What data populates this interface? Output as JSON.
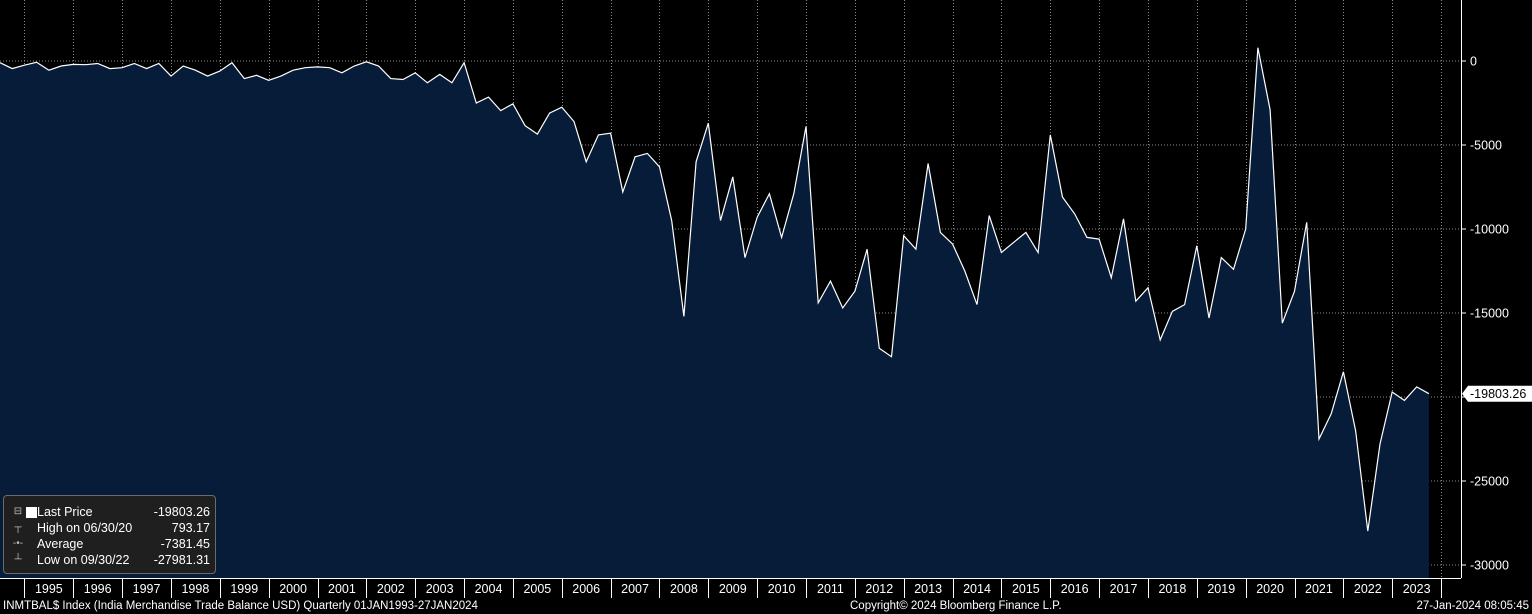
{
  "chart_data": {
    "type": "area",
    "series": [
      {
        "name": "Last Price",
        "color": "#ffffff",
        "fill": "#061c38"
      }
    ],
    "ylim": [
      -31000,
      3500
    ],
    "yticks": [
      0,
      -5000,
      -10000,
      -15000,
      -20000,
      -25000,
      -30000
    ],
    "ytick_labels": [
      "0",
      "-5000",
      "-10000",
      "-15000",
      "-20000",
      "-25000",
      "-30000"
    ],
    "xrange": [
      1994.0,
      2023.7
    ],
    "xtick_labels": [
      "1995",
      "1996",
      "1997",
      "1998",
      "1999",
      "2000",
      "2001",
      "2002",
      "2003",
      "2004",
      "2005",
      "2006",
      "2007",
      "2008",
      "2009",
      "2010",
      "2011",
      "2012",
      "2013",
      "2014",
      "2015",
      "2016",
      "2017",
      "2018",
      "2019",
      "2020",
      "2021",
      "2022",
      "2023"
    ],
    "grid": true,
    "points": [
      [
        1994.0,
        -100
      ],
      [
        1994.25,
        -450
      ],
      [
        1994.5,
        -250
      ],
      [
        1994.75,
        -80
      ],
      [
        1995.0,
        -550
      ],
      [
        1995.25,
        -300
      ],
      [
        1995.5,
        -200
      ],
      [
        1995.75,
        -220
      ],
      [
        1996.0,
        -150
      ],
      [
        1996.25,
        -450
      ],
      [
        1996.5,
        -400
      ],
      [
        1996.75,
        -150
      ],
      [
        1997.0,
        -450
      ],
      [
        1997.25,
        -150
      ],
      [
        1997.5,
        -900
      ],
      [
        1997.75,
        -300
      ],
      [
        1998.0,
        -550
      ],
      [
        1998.25,
        -900
      ],
      [
        1998.5,
        -600
      ],
      [
        1998.75,
        -100
      ],
      [
        1999.0,
        -1050
      ],
      [
        1999.25,
        -850
      ],
      [
        1999.5,
        -1150
      ],
      [
        1999.75,
        -900
      ],
      [
        2000.0,
        -550
      ],
      [
        2000.25,
        -400
      ],
      [
        2000.5,
        -350
      ],
      [
        2000.75,
        -400
      ],
      [
        2001.0,
        -700
      ],
      [
        2001.25,
        -300
      ],
      [
        2001.5,
        -50
      ],
      [
        2001.75,
        -300
      ],
      [
        2002.0,
        -1050
      ],
      [
        2002.25,
        -1100
      ],
      [
        2002.5,
        -700
      ],
      [
        2002.75,
        -1300
      ],
      [
        2003.0,
        -800
      ],
      [
        2003.25,
        -1300
      ],
      [
        2003.5,
        -100
      ],
      [
        2003.75,
        -2500
      ],
      [
        2004.0,
        -2150
      ],
      [
        2004.25,
        -2950
      ],
      [
        2004.5,
        -2550
      ],
      [
        2004.75,
        -3850
      ],
      [
        2005.0,
        -4350
      ],
      [
        2005.25,
        -3100
      ],
      [
        2005.5,
        -2750
      ],
      [
        2005.75,
        -3600
      ],
      [
        2006.0,
        -6000
      ],
      [
        2006.25,
        -4400
      ],
      [
        2006.5,
        -4300
      ],
      [
        2006.75,
        -7800
      ],
      [
        2007.0,
        -5700
      ],
      [
        2007.25,
        -5500
      ],
      [
        2007.5,
        -6300
      ],
      [
        2007.75,
        -9500
      ],
      [
        2008.0,
        -15200
      ],
      [
        2008.25,
        -6000
      ],
      [
        2008.5,
        -3700
      ],
      [
        2008.75,
        -9500
      ],
      [
        2009.0,
        -6900
      ],
      [
        2009.25,
        -11700
      ],
      [
        2009.5,
        -9300
      ],
      [
        2009.75,
        -7900
      ],
      [
        2010.0,
        -10500
      ],
      [
        2010.25,
        -7900
      ],
      [
        2010.5,
        -3900
      ],
      [
        2010.75,
        -14400
      ],
      [
        2011.0,
        -13100
      ],
      [
        2011.25,
        -14700
      ],
      [
        2011.5,
        -13700
      ],
      [
        2011.75,
        -11200
      ],
      [
        2012.0,
        -17100
      ],
      [
        2012.25,
        -17600
      ],
      [
        2012.5,
        -10400
      ],
      [
        2012.75,
        -11200
      ],
      [
        2013.0,
        -6100
      ],
      [
        2013.25,
        -10200
      ],
      [
        2013.5,
        -10900
      ],
      [
        2013.75,
        -12500
      ],
      [
        2014.0,
        -14500
      ],
      [
        2014.25,
        -9200
      ],
      [
        2014.5,
        -11400
      ],
      [
        2014.75,
        -10800
      ],
      [
        2015.0,
        -10200
      ],
      [
        2015.25,
        -11400
      ],
      [
        2015.5,
        -4400
      ],
      [
        2015.75,
        -8100
      ],
      [
        2016.0,
        -9100
      ],
      [
        2016.25,
        -10500
      ],
      [
        2016.5,
        -10600
      ],
      [
        2016.75,
        -12900
      ],
      [
        2017.0,
        -9400
      ],
      [
        2017.25,
        -14300
      ],
      [
        2017.5,
        -13500
      ],
      [
        2017.75,
        -16600
      ],
      [
        2018.0,
        -14900
      ],
      [
        2018.25,
        -14500
      ],
      [
        2018.5,
        -11000
      ],
      [
        2018.75,
        -15300
      ],
      [
        2019.0,
        -11700
      ],
      [
        2019.25,
        -12400
      ],
      [
        2019.5,
        -10000
      ],
      [
        2019.75,
        793.17
      ],
      [
        2020.0,
        -2900
      ],
      [
        2020.25,
        -15600
      ],
      [
        2020.5,
        -13700
      ],
      [
        2020.75,
        -9600
      ],
      [
        2021.0,
        -22500
      ],
      [
        2021.25,
        -21000
      ],
      [
        2021.5,
        -18500
      ],
      [
        2021.75,
        -22000
      ],
      [
        2022.0,
        -27981.31
      ],
      [
        2022.25,
        -22800
      ],
      [
        2022.5,
        -19700
      ],
      [
        2022.75,
        -20200
      ],
      [
        2023.0,
        -19400
      ],
      [
        2023.25,
        -19803.26
      ]
    ],
    "last_price_label": "-19803.26",
    "legend": {
      "last_price": {
        "label": "Last Price",
        "value": "-19803.26"
      },
      "high": {
        "label": "High on 06/30/20",
        "value": "793.17"
      },
      "average": {
        "label": "Average",
        "value": "-7381.45"
      },
      "low": {
        "label": "Low on 09/30/22",
        "value": "-27981.31"
      }
    }
  },
  "footer": {
    "left": "INMTBAL$ Index (India Merchandise Trade Balance USD)  Quarterly 01JAN1993-27JAN2024",
    "center": "Copyright© 2024 Bloomberg Finance L.P.",
    "right": "27-Jan-2024 08:05:45"
  },
  "colors": {
    "background": "#000000",
    "area_fill": "#061c38",
    "line": "#ffffff",
    "grid": "#8a8a8a"
  }
}
